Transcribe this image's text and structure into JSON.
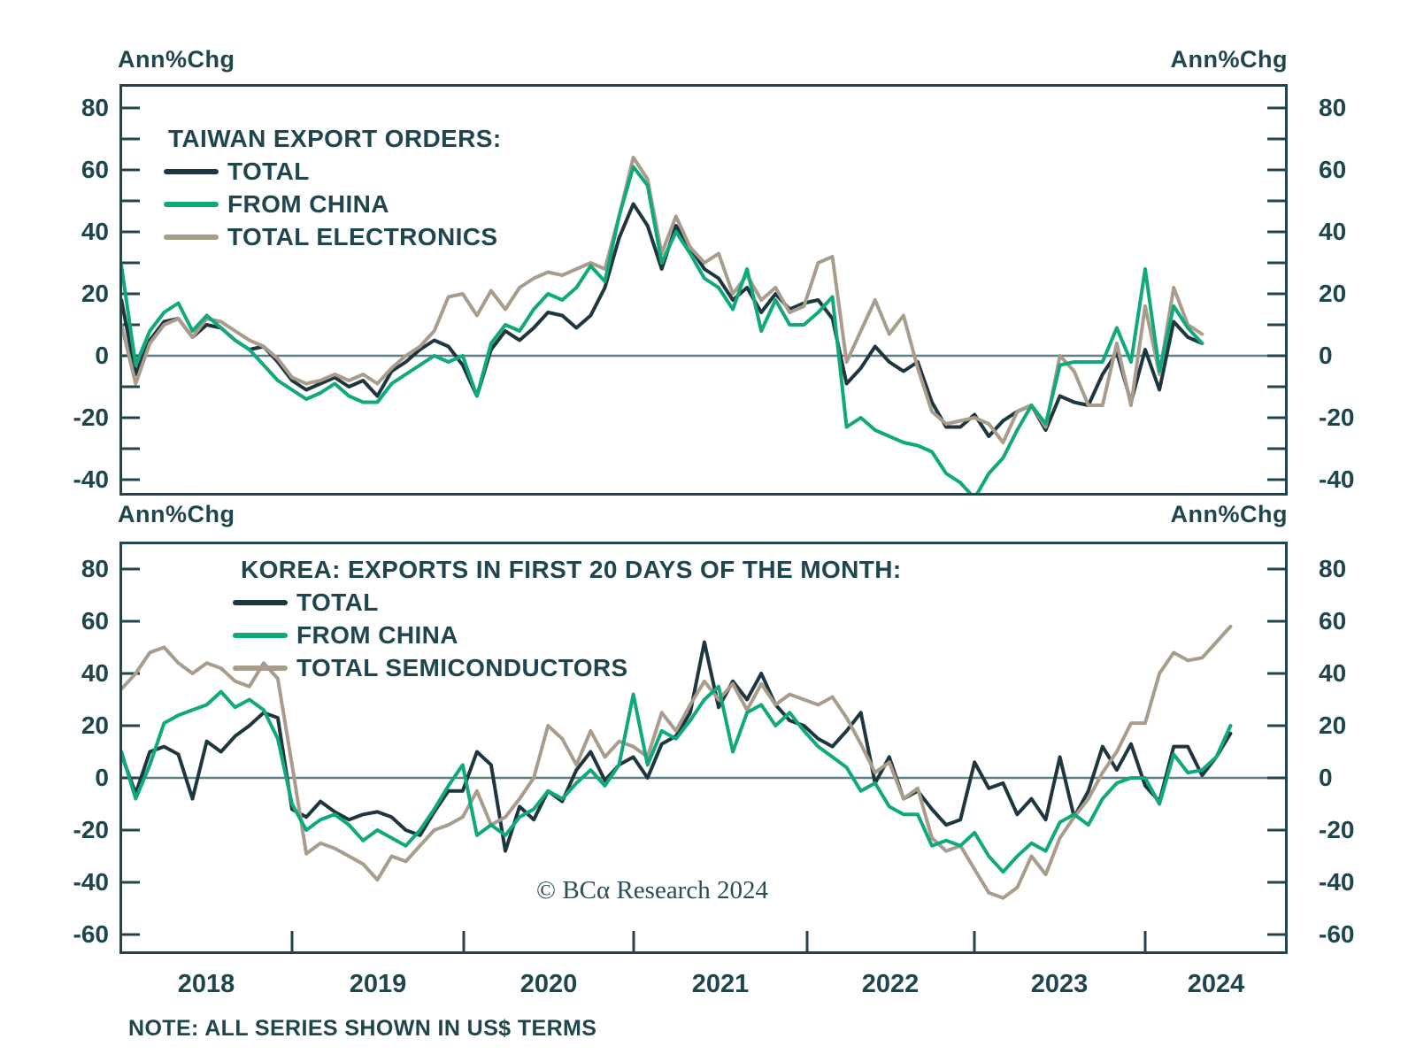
{
  "colors": {
    "background": "#ffffff",
    "frame": "#20454e",
    "text": "#1f454e",
    "zero_line": "#5d7f87",
    "total": "#1e3640",
    "from_china": "#0fa97b",
    "tan": "#a99c8b"
  },
  "note": "NOTE: ALL SERIES SHOWN IN US$ TERMS",
  "watermark": "© BCα Research 2024",
  "x_axis": {
    "years": [
      "2018",
      "2019",
      "2020",
      "2021",
      "2022",
      "2023",
      "2024"
    ]
  },
  "chart_data": [
    {
      "type": "line",
      "title": "TAIWAN EXPORT ORDERS:",
      "unit_label": "Ann%Chg",
      "xlabel": "",
      "ylabel": "Ann%Chg",
      "ylim": [
        -45,
        87
      ],
      "y_tick_labels": [
        80,
        60,
        40,
        20,
        0,
        -20,
        -40
      ],
      "y_tick_step": 10,
      "grid": false,
      "zero_line": true,
      "legend_position": "top-left-inside",
      "x_start": "2018-01",
      "x_freq": "monthly",
      "series": [
        {
          "name": "TOTAL",
          "color": "#1e3640",
          "values": [
            18,
            -6,
            5,
            11,
            12,
            6,
            10,
            9,
            5,
            2,
            3,
            -2,
            -8,
            -11,
            -9,
            -7,
            -10,
            -8,
            -13,
            -5,
            -2,
            2,
            5,
            3,
            -3,
            -13,
            2,
            8,
            5,
            9,
            14,
            13,
            9,
            13,
            22,
            38,
            49,
            42,
            28,
            42,
            35,
            28,
            25,
            18,
            22,
            14,
            20,
            15,
            17,
            18,
            12,
            -9,
            -4,
            3,
            -2,
            -5,
            -2,
            -15,
            -23,
            -23,
            -19,
            -26,
            -21,
            -18,
            -16,
            -24,
            -13,
            -15,
            -16,
            -6,
            1,
            -15,
            2,
            -11,
            11,
            6,
            4
          ]
        },
        {
          "name": "FROM CHINA",
          "color": "#0fa97b",
          "values": [
            29,
            -3,
            8,
            14,
            17,
            8,
            13,
            9,
            5,
            2,
            -3,
            -8,
            -11,
            -14,
            -12,
            -9,
            -13,
            -15,
            -15,
            -9,
            -6,
            -3,
            0,
            -2,
            0,
            -13,
            4,
            10,
            8,
            15,
            20,
            18,
            22,
            29,
            24,
            45,
            61,
            55,
            30,
            40,
            33,
            25,
            22,
            15,
            28,
            8,
            18,
            10,
            10,
            14,
            19,
            -23,
            -20,
            -24,
            -26,
            -28,
            -29,
            -31,
            -38,
            -41,
            -46,
            -38,
            -33,
            -24,
            -16,
            -22,
            -3,
            -2,
            -2,
            -2,
            9,
            -2,
            28,
            -5,
            16,
            9,
            4
          ]
        },
        {
          "name": "TOTAL ELECTRONICS",
          "color": "#a99c8b",
          "values": [
            10,
            -9,
            4,
            10,
            12,
            6,
            12,
            11,
            8,
            5,
            3,
            -1,
            -7,
            -9,
            -8,
            -6,
            -8,
            -6,
            -9,
            -4,
            0,
            3,
            8,
            19,
            20,
            13,
            21,
            15,
            22,
            25,
            27,
            26,
            28,
            30,
            28,
            45,
            64,
            57,
            33,
            45,
            35,
            30,
            33,
            20,
            26,
            18,
            22,
            14,
            16,
            30,
            32,
            -2,
            8,
            18,
            7,
            13,
            -4,
            -18,
            -22,
            -21,
            -20,
            -22,
            -28,
            -18,
            -16,
            -23,
            0,
            -5,
            -16,
            -16,
            4,
            -16,
            16,
            -6,
            22,
            10,
            7
          ]
        }
      ]
    },
    {
      "type": "line",
      "title": "KOREA: EXPORTS IN FIRST 20 DAYS OF THE MONTH:",
      "unit_label": "Ann%Chg",
      "xlabel": "",
      "ylabel": "Ann%Chg",
      "ylim": [
        -67,
        90
      ],
      "y_tick_labels": [
        80,
        60,
        40,
        20,
        0,
        -20,
        -40,
        -60
      ],
      "y_tick_step": 20,
      "grid": false,
      "zero_line": true,
      "legend_position": "top-left-inside",
      "x_start": "2018-01",
      "x_freq": "monthly",
      "series": [
        {
          "name": "TOTAL",
          "color": "#1e3640",
          "values": [
            9,
            -6,
            10,
            12,
            9,
            -8,
            14,
            10,
            16,
            20,
            25,
            23,
            -12,
            -15,
            -9,
            -13,
            -16,
            -14,
            -13,
            -15,
            -20,
            -22,
            -13,
            -5,
            -5,
            10,
            5,
            -28,
            -11,
            -16,
            -5,
            -9,
            3,
            10,
            -1,
            5,
            8,
            0,
            13,
            16,
            25,
            52,
            27,
            37,
            30,
            40,
            28,
            22,
            20,
            15,
            12,
            18,
            25,
            -2,
            8,
            -8,
            -5,
            -12,
            -18,
            -16,
            6,
            -4,
            -2,
            -14,
            -8,
            -16,
            8,
            -15,
            -5,
            12,
            3,
            13,
            -3,
            -9,
            12,
            12,
            1,
            8,
            17
          ]
        },
        {
          "name": "FROM CHINA",
          "color": "#0fa97b",
          "values": [
            10,
            -8,
            5,
            21,
            24,
            26,
            28,
            33,
            27,
            30,
            26,
            15,
            -10,
            -20,
            -16,
            -14,
            -18,
            -24,
            -20,
            -23,
            -26,
            -20,
            -12,
            -3,
            5,
            -22,
            -18,
            -22,
            -15,
            -12,
            -5,
            -8,
            -2,
            3,
            -3,
            5,
            32,
            5,
            18,
            15,
            22,
            30,
            35,
            10,
            25,
            28,
            20,
            25,
            18,
            12,
            8,
            4,
            -5,
            -2,
            -11,
            -14,
            -14,
            -26,
            -24,
            -26,
            -21,
            -30,
            -36,
            -30,
            -25,
            -28,
            -17,
            -14,
            -18,
            -8,
            -2,
            0,
            0,
            -10,
            9,
            2,
            3,
            8,
            20
          ]
        },
        {
          "name": "TOTAL SEMICONDUCTORS",
          "color": "#a99c8b",
          "values": [
            34,
            40,
            48,
            50,
            44,
            40,
            44,
            42,
            37,
            35,
            44,
            38,
            5,
            -29,
            -25,
            -27,
            -30,
            -33,
            -39,
            -30,
            -32,
            -26,
            -20,
            -18,
            -15,
            -5,
            -18,
            -15,
            -8,
            0,
            20,
            15,
            5,
            18,
            8,
            14,
            12,
            8,
            25,
            18,
            28,
            37,
            30,
            36,
            26,
            36,
            28,
            32,
            30,
            28,
            31,
            23,
            13,
            2,
            6,
            -8,
            -4,
            -23,
            -28,
            -26,
            -35,
            -44,
            -46,
            -42,
            -30,
            -37,
            -23,
            -15,
            -8,
            2,
            10,
            21,
            21,
            40,
            48,
            45,
            46,
            52,
            58
          ]
        }
      ]
    }
  ]
}
